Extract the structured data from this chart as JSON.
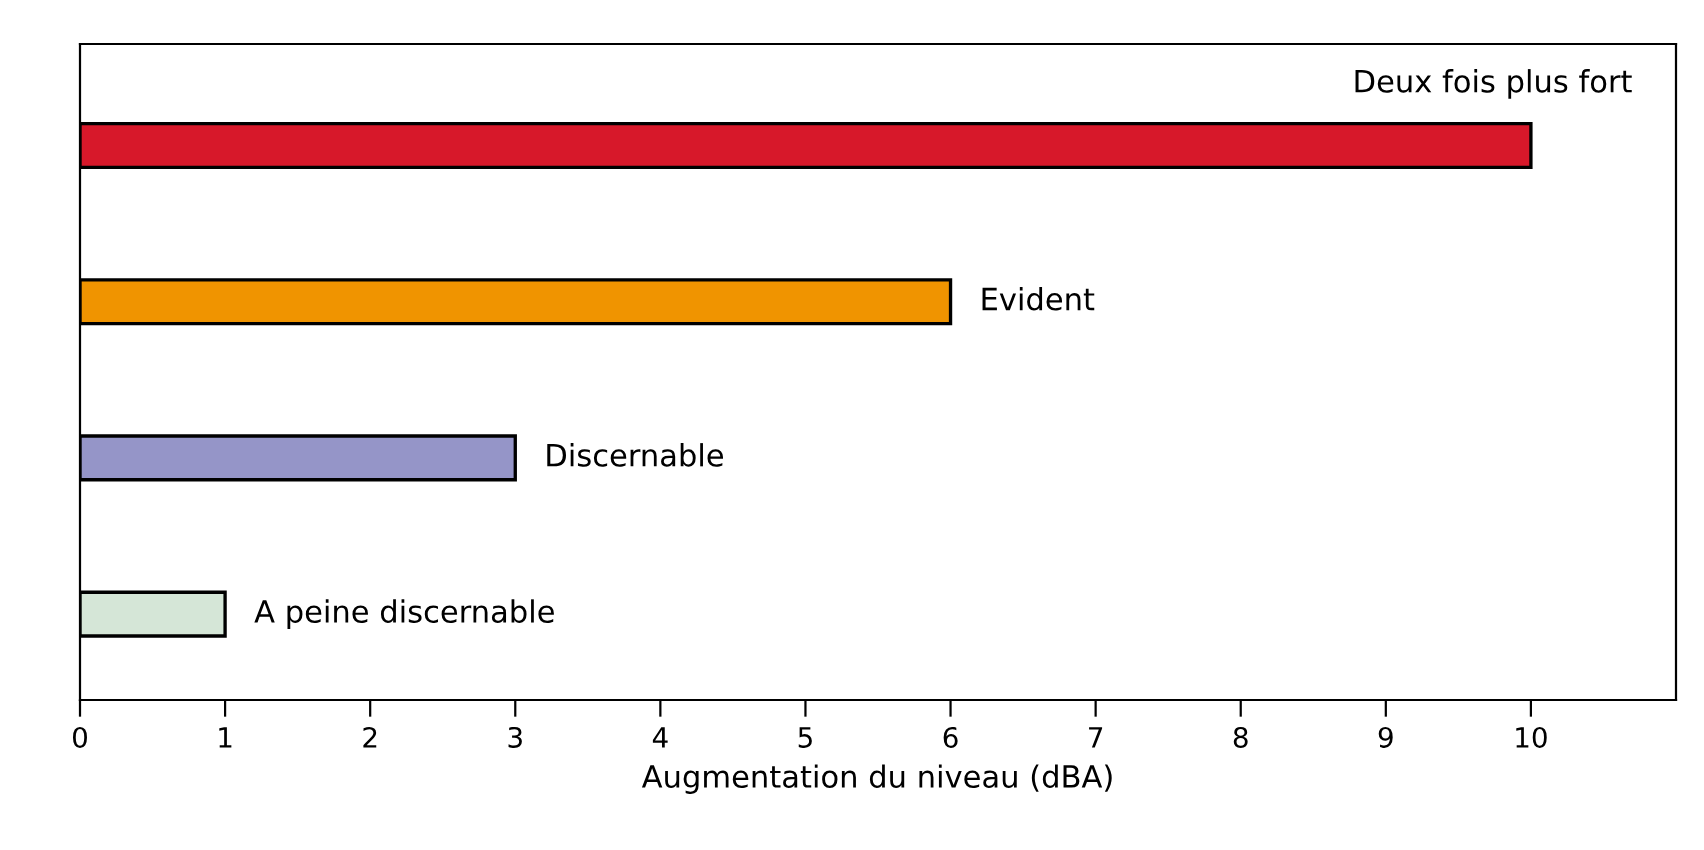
{
  "chart_data": {
    "type": "bar",
    "orientation": "horizontal",
    "categories": [
      "Deux fois plus fort",
      "Evident",
      "Discernable",
      "A peine discernable"
    ],
    "values": [
      10,
      6,
      3,
      1
    ],
    "colors": [
      "#d7182a",
      "#f09400",
      "#9595c8",
      "#d5e6d7"
    ],
    "xlabel": "Augmentation du niveau (dBA)",
    "xlim": [
      0,
      11
    ],
    "xticks": [
      0,
      1,
      2,
      3,
      4,
      5,
      6,
      7,
      8,
      9,
      10
    ],
    "grid": false,
    "legend": false
  }
}
